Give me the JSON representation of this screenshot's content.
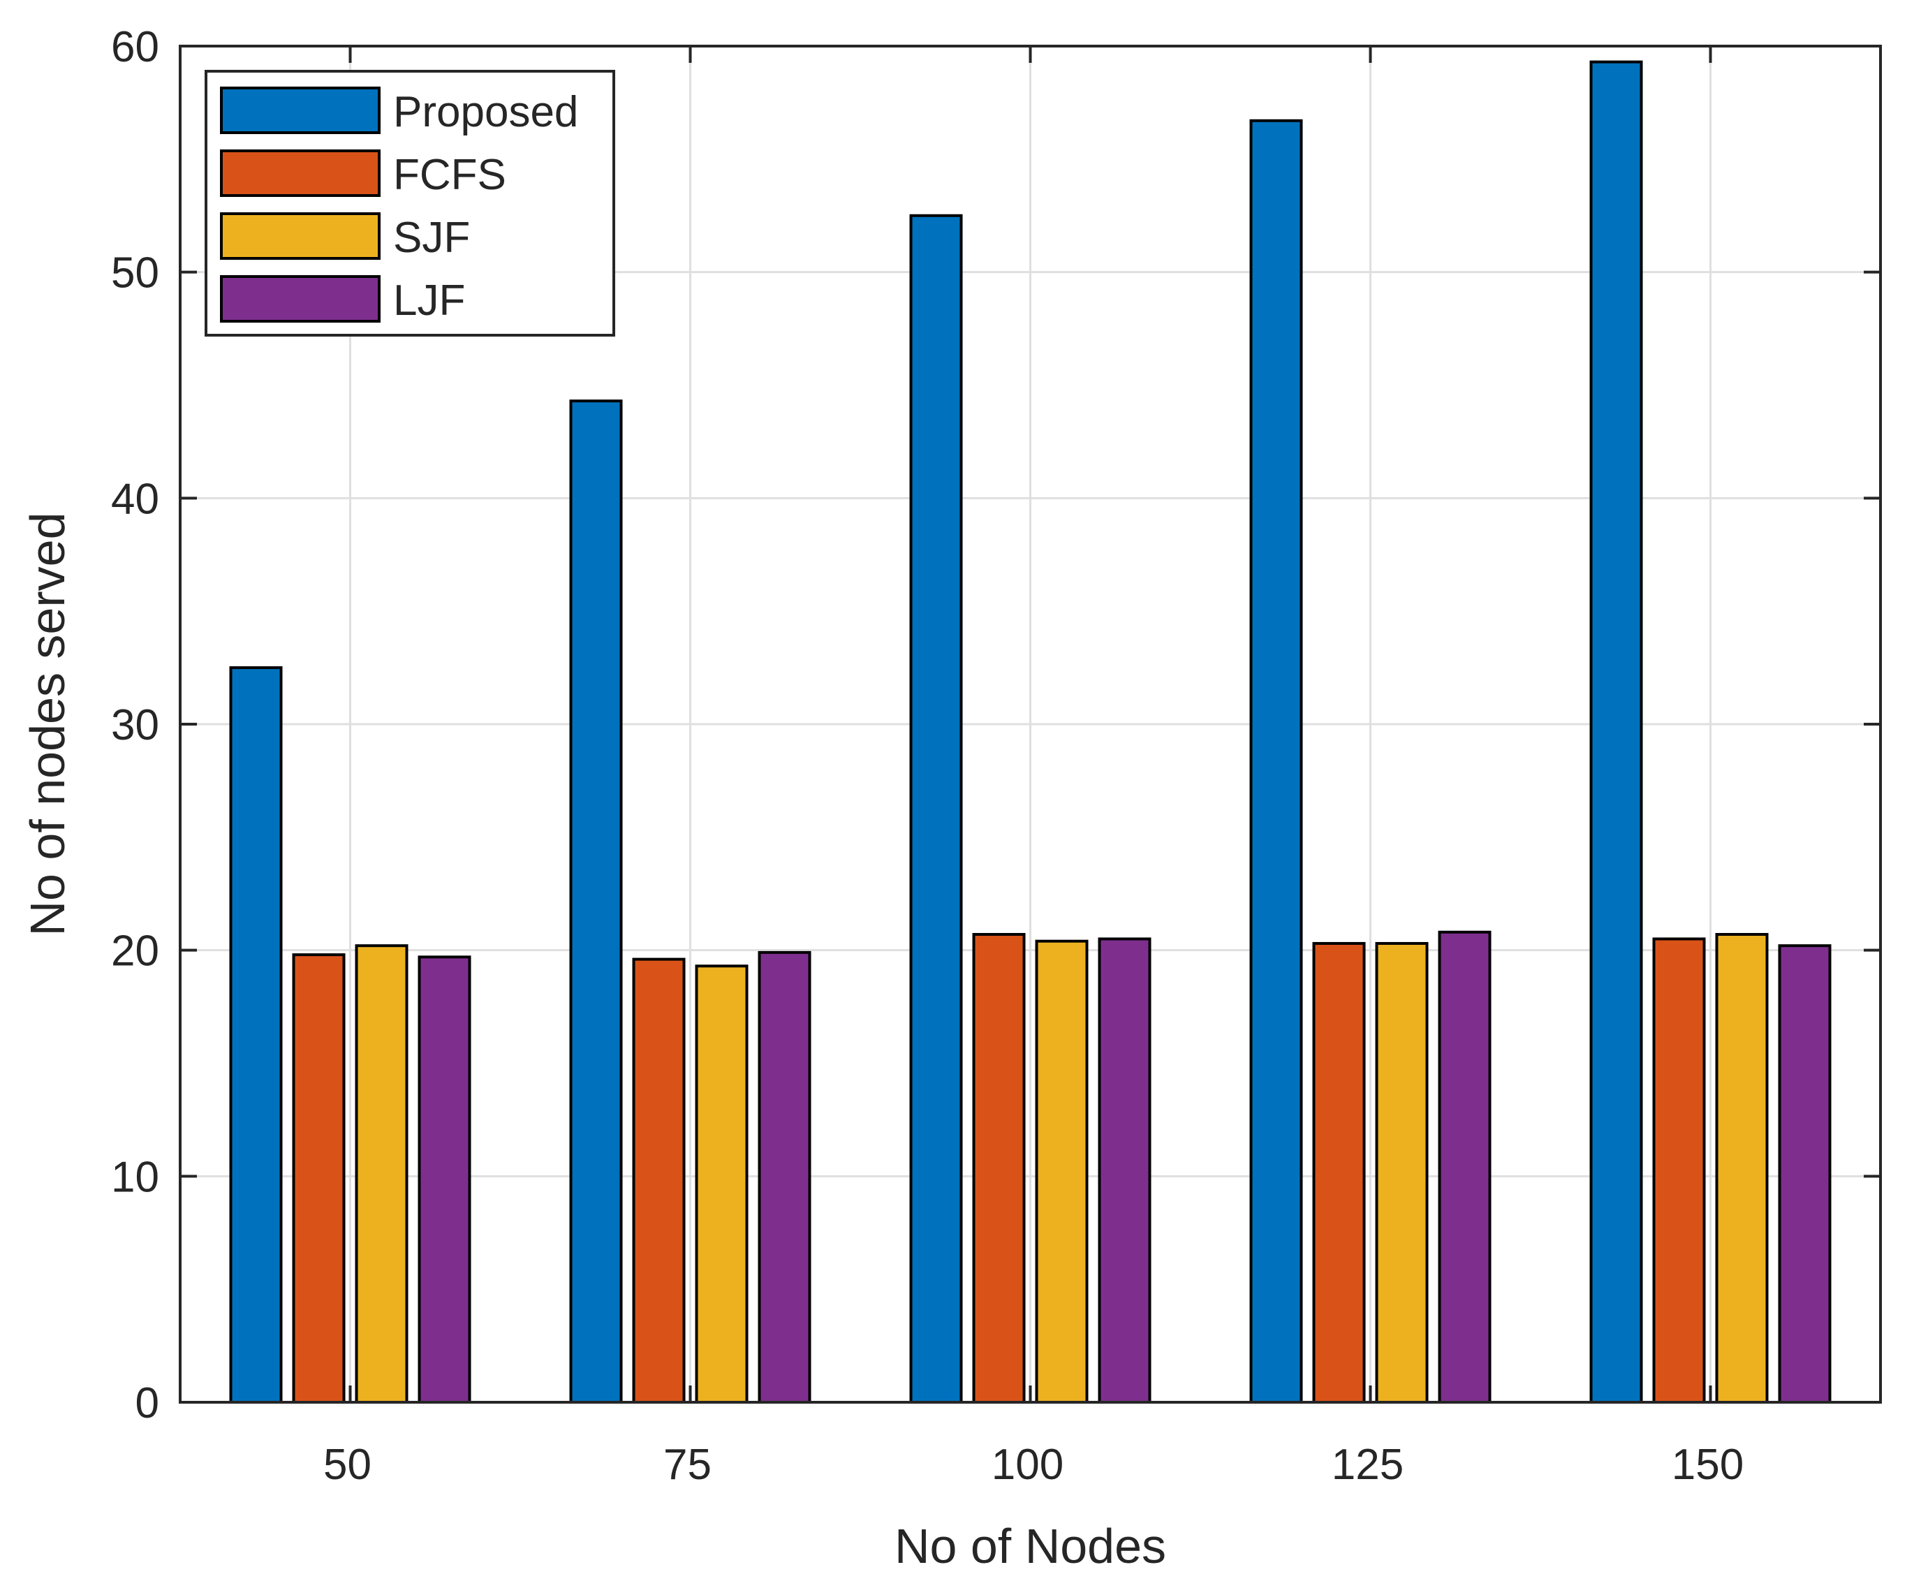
{
  "chart_data": {
    "type": "bar",
    "title": "",
    "xlabel": "No of Nodes",
    "ylabel": "No of nodes served",
    "categories": [
      "50",
      "75",
      "100",
      "125",
      "150"
    ],
    "ylim": [
      0,
      60
    ],
    "yticks": [
      "0",
      "10",
      "20",
      "30",
      "40",
      "50",
      "60"
    ],
    "grid": true,
    "legend_position": "top-left",
    "series": [
      {
        "name": "Proposed",
        "color": "#0072BD",
        "values": [
          32.5,
          44.3,
          52.5,
          56.7,
          59.3
        ]
      },
      {
        "name": "FCFS",
        "color": "#D95319",
        "values": [
          19.8,
          19.6,
          20.7,
          20.3,
          20.5
        ]
      },
      {
        "name": "SJF",
        "color": "#EDB120",
        "values": [
          20.2,
          19.3,
          20.4,
          20.3,
          20.7
        ]
      },
      {
        "name": "LJF",
        "color": "#7E2F8E",
        "values": [
          19.7,
          19.9,
          20.5,
          20.8,
          20.2
        ]
      }
    ]
  }
}
